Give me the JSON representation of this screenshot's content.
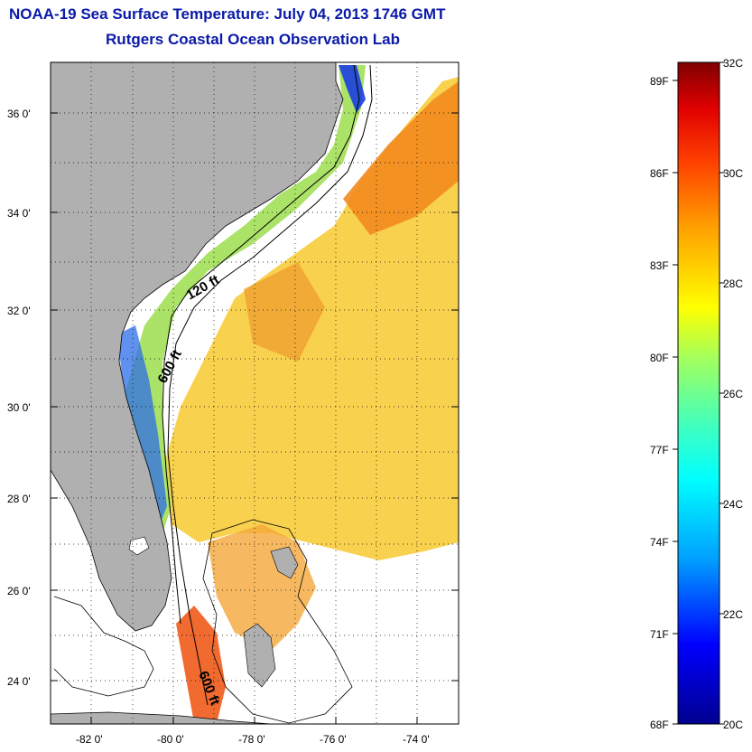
{
  "title": "NOAA-19 Sea Surface Temperature:  July 04, 2013 1746 GMT",
  "subtitle": "Rutgers Coastal Ocean Observation Lab",
  "map": {
    "lat_ticks": [
      "36 0'",
      "34 0'",
      "32 0'",
      "30 0'",
      "28 0'",
      "26 0'",
      "24 0'"
    ],
    "lon_ticks": [
      "-82 0'",
      "-80 0'",
      "-78 0'",
      "-76 0'",
      "-74 0'"
    ],
    "contour_labels": [
      "120 ft",
      "600 ft",
      "600 ft"
    ]
  },
  "colorbar": {
    "celsius": [
      "32C",
      "30C",
      "28C",
      "26C",
      "24C",
      "22C",
      "20C"
    ],
    "fahrenheit": [
      "89F",
      "86F",
      "83F",
      "80F",
      "77F",
      "74F",
      "71F",
      "68F"
    ],
    "colors": [
      "#00008f",
      "#0000ff",
      "#00a0ff",
      "#00ffff",
      "#40ffbf",
      "#a0ff60",
      "#ffff00",
      "#ffa000",
      "#ff4000",
      "#e00000",
      "#800000"
    ]
  }
}
